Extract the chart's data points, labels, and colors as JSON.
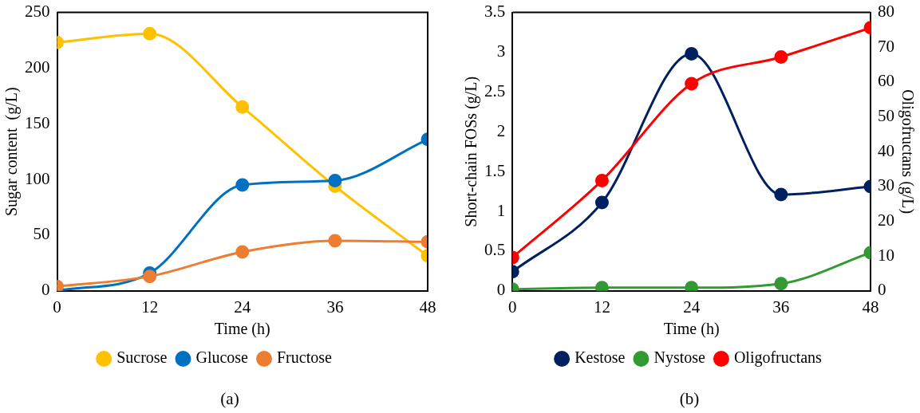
{
  "chart_data": [
    {
      "type": "line",
      "xlabel": "Time (h)",
      "ylabel": "Sugar content  (g/L)",
      "x": [
        0,
        12,
        24,
        36,
        48
      ],
      "xlim": [
        0,
        48
      ],
      "xticks": [
        0,
        12,
        24,
        36,
        48
      ],
      "ylim": [
        0,
        250
      ],
      "yticks": [
        0,
        50,
        100,
        150,
        200,
        250
      ],
      "marker": "circle",
      "grid": false,
      "legend": "bottom",
      "annotations": [
        "(a)"
      ],
      "series": [
        {
          "name": "Sucrose",
          "color": "#ffc000",
          "values": [
            223,
            231,
            165,
            94,
            31.5
          ]
        },
        {
          "name": "Glucose",
          "color": "#0070c0",
          "values": [
            0,
            16,
            95,
            99,
            136
          ]
        },
        {
          "name": "Fructose",
          "color": "#ed7d31",
          "values": [
            4,
            13,
            35,
            45,
            44
          ]
        }
      ]
    },
    {
      "type": "line",
      "xlabel": "Time (h)",
      "ylabel": "Short-chain FOSs (g/L)",
      "y2label": "Oligofructans (g/L)",
      "x": [
        0,
        12,
        24,
        36,
        48
      ],
      "xlim": [
        0,
        48
      ],
      "xticks": [
        0,
        12,
        24,
        36,
        48
      ],
      "ylim": [
        0,
        3.5
      ],
      "yticks": [
        0,
        0.5,
        1,
        1.5,
        2,
        2.5,
        3,
        3.5
      ],
      "y2lim": [
        0,
        80
      ],
      "y2ticks": [
        0,
        10,
        20,
        30,
        40,
        50,
        60,
        70,
        80
      ],
      "marker": "circle",
      "grid": false,
      "legend": "bottom",
      "annotations": [
        "(b)"
      ],
      "series": [
        {
          "name": "Kestose",
          "color": "#002060",
          "values": [
            0.24,
            1.11,
            2.98,
            1.21,
            1.31
          ]
        },
        {
          "name": "Nystose",
          "color": "#339933",
          "values": [
            0.02,
            0.04,
            0.04,
            0.09,
            0.48
          ]
        },
        {
          "name": "Oligofructans",
          "color": "#ff0000",
          "axis": "y2",
          "values": [
            9.6,
            31.7,
            59.5,
            67.2,
            75.6
          ]
        }
      ]
    }
  ]
}
